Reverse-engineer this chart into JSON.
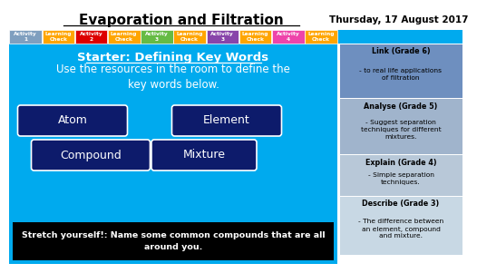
{
  "title": "Evaporation and Filtration",
  "date": "Thursday, 17 August 2017",
  "bg_color": "#00AAEE",
  "header_bg": "#FFFFFF",
  "activity_bar": [
    {
      "label": "Activity\n1",
      "color": "#7F9FBF"
    },
    {
      "label": "Learning\nCheck",
      "color": "#FFA500"
    },
    {
      "label": "Activity\n2",
      "color": "#DD0000"
    },
    {
      "label": "Learning\nCheck",
      "color": "#FFA500"
    },
    {
      "label": "Activity\n3",
      "color": "#66BB44"
    },
    {
      "label": "Learning\nCheck",
      "color": "#FFA500"
    },
    {
      "label": "Activity\n3",
      "color": "#8844AA"
    },
    {
      "label": "Learning\nCheck",
      "color": "#FFA500"
    },
    {
      "label": "Activity\n4",
      "color": "#EE44AA"
    },
    {
      "label": "Learning\nCheck",
      "color": "#FFA500"
    }
  ],
  "starter_title": "Starter: Defining Key Words",
  "starter_body": "Use the resources in the room to define the\nkey words below.",
  "key_words": [
    "Atom",
    "Element",
    "Compound",
    "Mixture"
  ],
  "kw_color": "#0D1B6B",
  "stretch_bg": "#000000",
  "stretch_text": "Stretch yourself!: Name some common compounds that are all\naround you.",
  "right_sections": [
    {
      "bg": "#6E8FBF",
      "title": "Link (Grade 6)",
      "body": "- to real life applications\nof filtration"
    },
    {
      "bg": "#A0B4CC",
      "title": "Analyse (Grade 5)",
      "body": "- Suggest separation\ntechniques for different\nmixtures."
    },
    {
      "bg": "#B8C8D8",
      "title": "Explain (Grade 4)",
      "body": "- Simple separation\ntechniques."
    },
    {
      "bg": "#C8D8E4",
      "title": "Describe (Grade 3)",
      "body": "- The difference between\nan element, compound\nand mixture."
    }
  ]
}
